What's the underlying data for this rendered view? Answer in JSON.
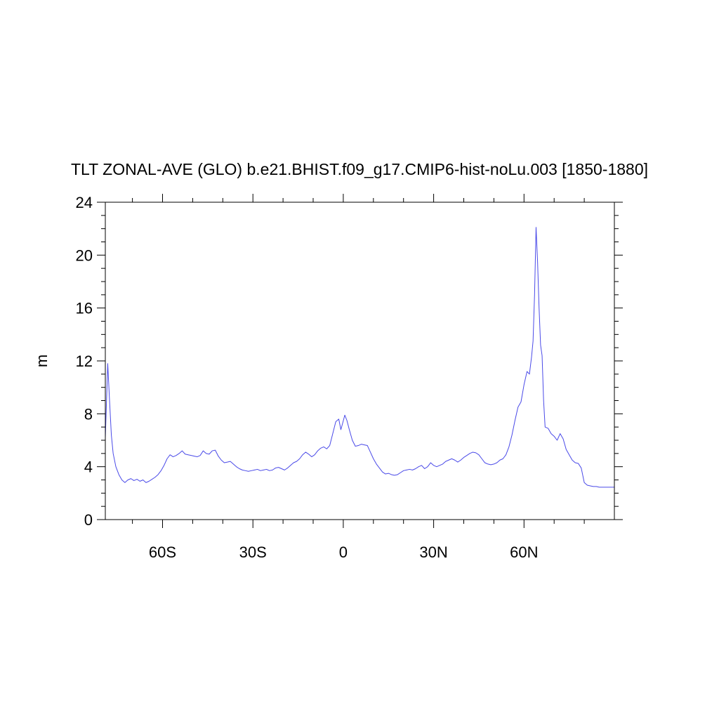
{
  "chart_data": {
    "type": "line",
    "title": "TLT ZONAL-AVE (GLO) b.e21.BHIST.f09_g17.CMIP6-hist-noLu.003 [1850-1880]",
    "xlabel": "",
    "ylabel": "m",
    "xlim": [
      -79,
      90
    ],
    "ylim": [
      0,
      24
    ],
    "x_ticks": [
      {
        "value": -60,
        "label": "60S"
      },
      {
        "value": -30,
        "label": "30S"
      },
      {
        "value": 0,
        "label": "0"
      },
      {
        "value": 30,
        "label": "30N"
      },
      {
        "value": 60,
        "label": "60N"
      }
    ],
    "y_ticks": [
      {
        "value": 0,
        "label": "0"
      },
      {
        "value": 4,
        "label": "4"
      },
      {
        "value": 8,
        "label": "8"
      },
      {
        "value": 12,
        "label": "12"
      },
      {
        "value": 16,
        "label": "16"
      },
      {
        "value": 20,
        "label": "20"
      },
      {
        "value": 24,
        "label": "24"
      }
    ],
    "line_color": "#4a4ae8",
    "series": [
      {
        "x": [
          -79,
          -78.2,
          -77.6,
          -77,
          -76.4,
          -75.5,
          -74.5,
          -73.5,
          -72.5,
          -71.5,
          -70.5,
          -69.5,
          -68.5,
          -67.5,
          -66.5,
          -65.5,
          -64.5,
          -63.5,
          -62.5,
          -61.5,
          -60.5,
          -59.5,
          -58.5,
          -57.5,
          -56.5,
          -55.5,
          -54.5,
          -53.5,
          -52.5,
          -51.5,
          -50.5,
          -49.5,
          -48.5,
          -47.5,
          -46.5,
          -45.5,
          -44.5,
          -43.5,
          -42.5,
          -41.5,
          -40.5,
          -39.5,
          -38.5,
          -37.5,
          -36.5,
          -35.5,
          -34.5,
          -33.5,
          -32.5,
          -31.5,
          -30.5,
          -29.5,
          -28.5,
          -27.5,
          -26.5,
          -25.5,
          -24.5,
          -23.5,
          -22.5,
          -21.5,
          -20.5,
          -19.5,
          -18.5,
          -17.5,
          -16.5,
          -15.5,
          -14.5,
          -13.5,
          -12.5,
          -11.5,
          -10.5,
          -9.5,
          -8.5,
          -7.5,
          -6.5,
          -5.5,
          -4.5,
          -3.5,
          -2.5,
          -1.5,
          -0.8,
          -0.2,
          0.5,
          1.2,
          2,
          3,
          4,
          5,
          6,
          7,
          8,
          9,
          10,
          11,
          12,
          13,
          14,
          15,
          16,
          17,
          18,
          19,
          20,
          21,
          22,
          23,
          24,
          25,
          26,
          27,
          28,
          29,
          30,
          31,
          32,
          33,
          34,
          35,
          36,
          37,
          38,
          39,
          40,
          41,
          42,
          43,
          44,
          45,
          46,
          47,
          48,
          49,
          50,
          51,
          52,
          53,
          54,
          55,
          56,
          57,
          58,
          59,
          60,
          61,
          61.8,
          62.5,
          63,
          63.5,
          64,
          64.5,
          65,
          65.5,
          66,
          66.5,
          67,
          68,
          69,
          70,
          71,
          72,
          73,
          74,
          75,
          76,
          77,
          78,
          79,
          80,
          81,
          82,
          83,
          84,
          85,
          86,
          87,
          88,
          90
        ],
        "y": [
          6.2,
          11.8,
          9.0,
          6.4,
          5.0,
          4.0,
          3.4,
          3.0,
          2.8,
          3.0,
          3.1,
          2.95,
          3.05,
          2.9,
          3.0,
          2.8,
          2.9,
          3.05,
          3.2,
          3.4,
          3.7,
          4.1,
          4.6,
          4.9,
          4.75,
          4.85,
          5.0,
          5.2,
          4.95,
          4.9,
          4.85,
          4.8,
          4.75,
          4.85,
          5.2,
          5.0,
          4.95,
          5.2,
          5.25,
          4.8,
          4.5,
          4.3,
          4.35,
          4.4,
          4.2,
          4.0,
          3.85,
          3.75,
          3.7,
          3.65,
          3.7,
          3.75,
          3.8,
          3.7,
          3.75,
          3.8,
          3.7,
          3.75,
          3.9,
          3.95,
          3.85,
          3.75,
          3.9,
          4.1,
          4.3,
          4.4,
          4.6,
          4.9,
          5.1,
          4.95,
          4.75,
          4.9,
          5.2,
          5.4,
          5.5,
          5.35,
          5.6,
          6.5,
          7.4,
          7.6,
          6.8,
          7.3,
          7.9,
          7.5,
          6.8,
          6.0,
          5.55,
          5.6,
          5.7,
          5.65,
          5.6,
          5.1,
          4.6,
          4.2,
          3.9,
          3.6,
          3.45,
          3.5,
          3.4,
          3.35,
          3.4,
          3.55,
          3.7,
          3.75,
          3.8,
          3.75,
          3.85,
          4.0,
          4.1,
          3.85,
          4.0,
          4.3,
          4.1,
          4.0,
          4.1,
          4.2,
          4.4,
          4.5,
          4.6,
          4.5,
          4.35,
          4.5,
          4.7,
          4.85,
          5.0,
          5.1,
          5.05,
          4.9,
          4.6,
          4.3,
          4.2,
          4.15,
          4.2,
          4.3,
          4.5,
          4.6,
          4.9,
          5.5,
          6.4,
          7.5,
          8.5,
          8.9,
          10.2,
          11.2,
          11.0,
          12.3,
          13.5,
          17.0,
          22.1,
          19.5,
          16.0,
          13.2,
          12.4,
          9.0,
          7.0,
          6.9,
          6.5,
          6.3,
          6.0,
          6.5,
          6.1,
          5.3,
          4.9,
          4.5,
          4.3,
          4.25,
          3.9,
          2.8,
          2.6,
          2.55,
          2.5,
          2.5,
          2.45,
          2.45,
          2.45,
          2.45,
          2.45
        ]
      }
    ]
  }
}
